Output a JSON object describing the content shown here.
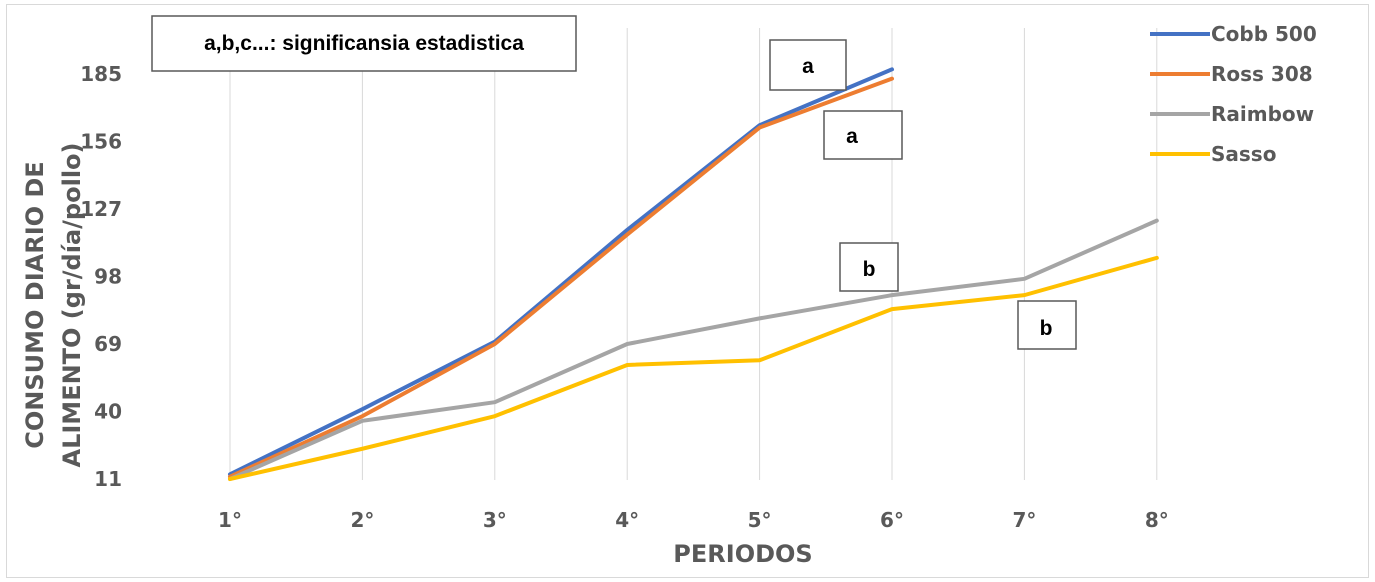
{
  "chart_data": {
    "type": "line",
    "categories": [
      "1°",
      "2°",
      "3°",
      "4°",
      "5°",
      "6°",
      "7°",
      "8°"
    ],
    "series": [
      {
        "name": "Cobb 500",
        "color": "#4472C4",
        "values": [
          13,
          41,
          70,
          118,
          163,
          187,
          null,
          null
        ]
      },
      {
        "name": "Ross 308",
        "color": "#ED7D31",
        "values": [
          12,
          38,
          69,
          116,
          162,
          183,
          null,
          null
        ]
      },
      {
        "name": "Raimbow",
        "color": "#A5A5A5",
        "values": [
          11,
          36,
          44,
          69,
          80,
          90,
          97,
          122
        ]
      },
      {
        "name": "Sasso",
        "color": "#FFC000",
        "values": [
          11,
          24,
          38,
          60,
          62,
          84,
          90,
          106
        ]
      }
    ],
    "xlabel": "PERIODOS",
    "ylabel_line1": "CONSUMO DIARIO DE",
    "ylabel_line2": "ALIMENTO (gr/día/pollo)",
    "yticks": [
      11,
      40,
      69,
      98,
      127,
      156,
      185
    ],
    "ylim": [
      11,
      214
    ],
    "grid": "vertical",
    "legend_position": "top-right",
    "annotations": {
      "note": "a,b,c...: significansia estadistica",
      "labels": [
        "a",
        "a",
        "b",
        "b"
      ]
    }
  }
}
